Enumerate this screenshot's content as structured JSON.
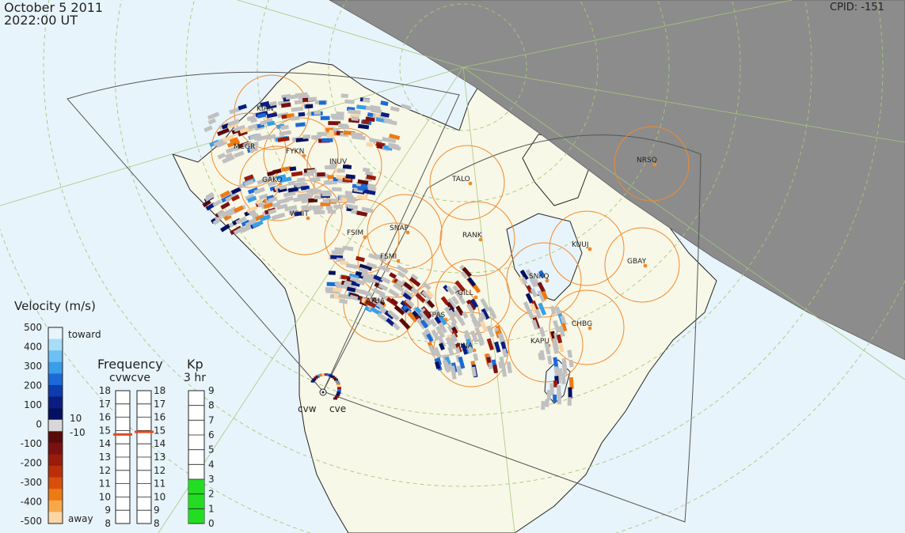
{
  "header": {
    "date": "October  5 2011",
    "time": "2022:00 UT",
    "cpid": "CPID:  -151"
  },
  "colors": {
    "ocean": "#e8f4fb",
    "land": "#f8f8e8",
    "night": "#8c8c8c",
    "ring": "#f08a2c",
    "grid": "#a6c77c",
    "ground_scatter": "#c0c0c0",
    "kp_bar": "#22dd22",
    "freq_marker": "#e8461e"
  },
  "stations": [
    {
      "code": "KIAN"
    },
    {
      "code": "MCGR"
    },
    {
      "code": "FYKN"
    },
    {
      "code": "INUV"
    },
    {
      "code": "GAKO"
    },
    {
      "code": "WHIT"
    },
    {
      "code": "FSIM"
    },
    {
      "code": "SNAP"
    },
    {
      "code": "FSMI"
    },
    {
      "code": "ATHA"
    },
    {
      "code": "TPAS"
    },
    {
      "code": "GILL"
    },
    {
      "code": "PINA"
    },
    {
      "code": "RANK"
    },
    {
      "code": "TALO"
    },
    {
      "code": "KAPU"
    },
    {
      "code": "SNKQ"
    },
    {
      "code": "CHBG"
    },
    {
      "code": "KUUJ"
    },
    {
      "code": "GBAY"
    },
    {
      "code": "NRSQ"
    }
  ],
  "radars": {
    "west": "cvw",
    "east": "cve"
  },
  "velocity_scale": {
    "title": "Velocity (m/s)",
    "ticks": [
      "500",
      "400",
      "300",
      "200",
      "100",
      "0",
      "-100",
      "-200",
      "-300",
      "-400",
      "-500"
    ],
    "toward": "toward",
    "away": "away",
    "gs_pos": "10",
    "gs_neg": "-10",
    "colors": [
      "#e8f4fb",
      "#a8dcf8",
      "#6cc0f4",
      "#3a9ee8",
      "#1c6ad8",
      "#0c3cae",
      "#0a1d82",
      "#051060",
      "#d8d8d8",
      "#5a0a0a",
      "#7a1010",
      "#9a1a0c",
      "#bb2e0a",
      "#d94e0c",
      "#ee7a14",
      "#f7a94a",
      "#fbd5a6"
    ]
  },
  "frequency": {
    "title": "Frequency",
    "sub": "cvwcve",
    "ticks": [
      "18",
      "17",
      "16",
      "15",
      "14",
      "13",
      "12",
      "11",
      "10",
      "9",
      "8"
    ],
    "cvw_mhz": 14.7,
    "cve_mhz": 14.9
  },
  "kp": {
    "title": "Kp",
    "sub": "3 hr",
    "ticks": [
      "9",
      "8",
      "7",
      "6",
      "5",
      "4",
      "3",
      "2",
      "1",
      "0"
    ],
    "value": 3
  }
}
